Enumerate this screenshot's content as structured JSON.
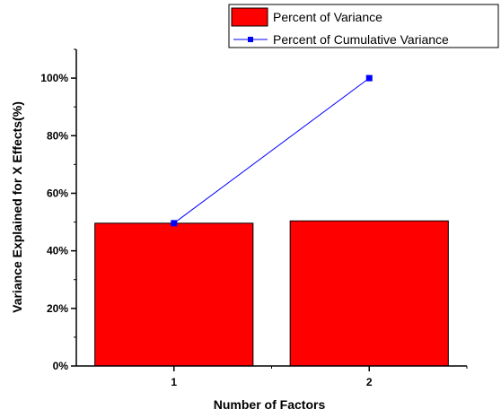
{
  "chart_data": {
    "type": "bar",
    "title": "",
    "xlabel": "Number of Factors",
    "ylabel": "Variance Explained for X Effects(%)",
    "categories": [
      "1",
      "2"
    ],
    "ylim": [
      0,
      110
    ],
    "yticks": [
      0,
      20,
      40,
      60,
      80,
      100
    ],
    "ytick_labels": [
      "0%",
      "20%",
      "40%",
      "60%",
      "80%",
      "100%"
    ],
    "grid": false,
    "legend_position": "top-right",
    "series": [
      {
        "name": "Percent of Variance",
        "type": "bar",
        "values": [
          49.6,
          50.4
        ],
        "color": "#ff0000"
      },
      {
        "name": "Percent of Cumulative Variance",
        "type": "line",
        "marker": "square",
        "values": [
          49.6,
          100
        ],
        "color": "#0000ff"
      }
    ]
  }
}
